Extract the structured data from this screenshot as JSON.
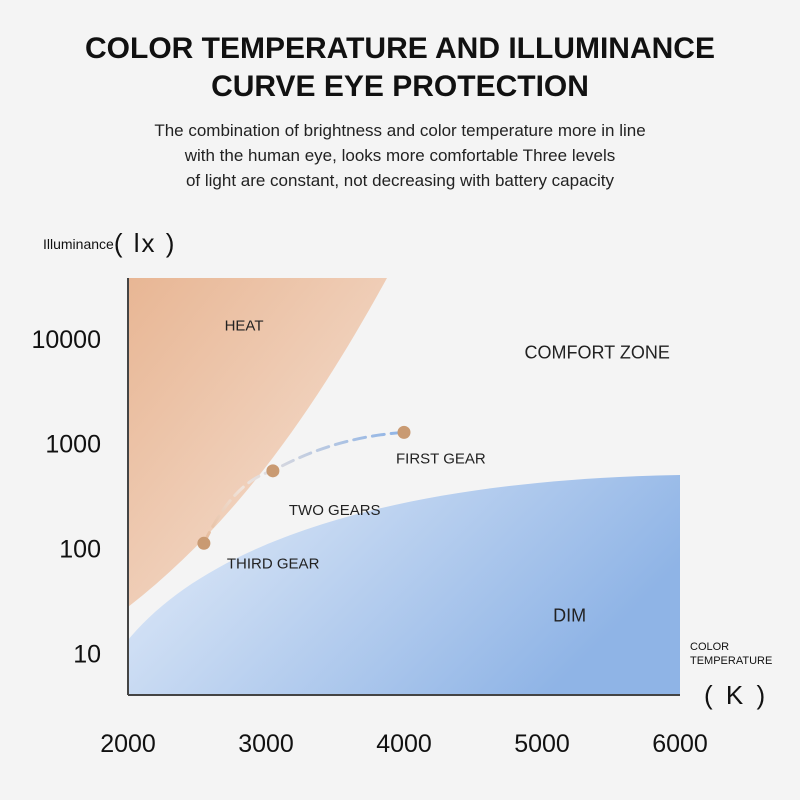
{
  "title_line1": "COLOR TEMPERATURE AND ILLUMINANCE",
  "title_line2": "CURVE EYE PROTECTION",
  "subtitle_lines": [
    "The combination of brightness and color temperature more in line",
    "with the human eye, looks more comfortable Three levels",
    "of light are constant, not decreasing with battery capacity"
  ],
  "chart_data": {
    "type": "scatter",
    "ylabel": "Illuminance",
    "ylabel_unit": "( lx )",
    "xlabel_lines": [
      "COLOR",
      "TEMPERATURE"
    ],
    "xlabel_unit": "( K )",
    "x_ticks": [
      2000,
      3000,
      4000,
      5000,
      6000
    ],
    "y_ticks": [
      10,
      100,
      1000,
      10000
    ],
    "y_tick_labels": [
      "10",
      "100",
      "1000",
      "10000"
    ],
    "y_scale": "log",
    "xlim": [
      2000,
      6000
    ],
    "ylim": [
      4,
      38000
    ],
    "regions": [
      {
        "name": "HEAT",
        "label_at": [
          2700,
          12000
        ],
        "color": "#e8b694"
      },
      {
        "name": "COMFORT ZONE",
        "label_at": [
          5400,
          6500
        ],
        "color": "#f4f4f4"
      },
      {
        "name": "DIM",
        "label_at": [
          5200,
          20
        ],
        "color": "#8fb4e6"
      }
    ],
    "points": [
      {
        "name": "FIRST GEAR",
        "x": 4000,
        "y": 1280
      },
      {
        "name": "TWO GEARS",
        "x": 3050,
        "y": 550
      },
      {
        "name": "THIRD GEAR",
        "x": 2550,
        "y": 112
      }
    ],
    "point_color": "#c99a72",
    "curve_colors": [
      "#e6b998",
      "#8fb4e6"
    ]
  }
}
